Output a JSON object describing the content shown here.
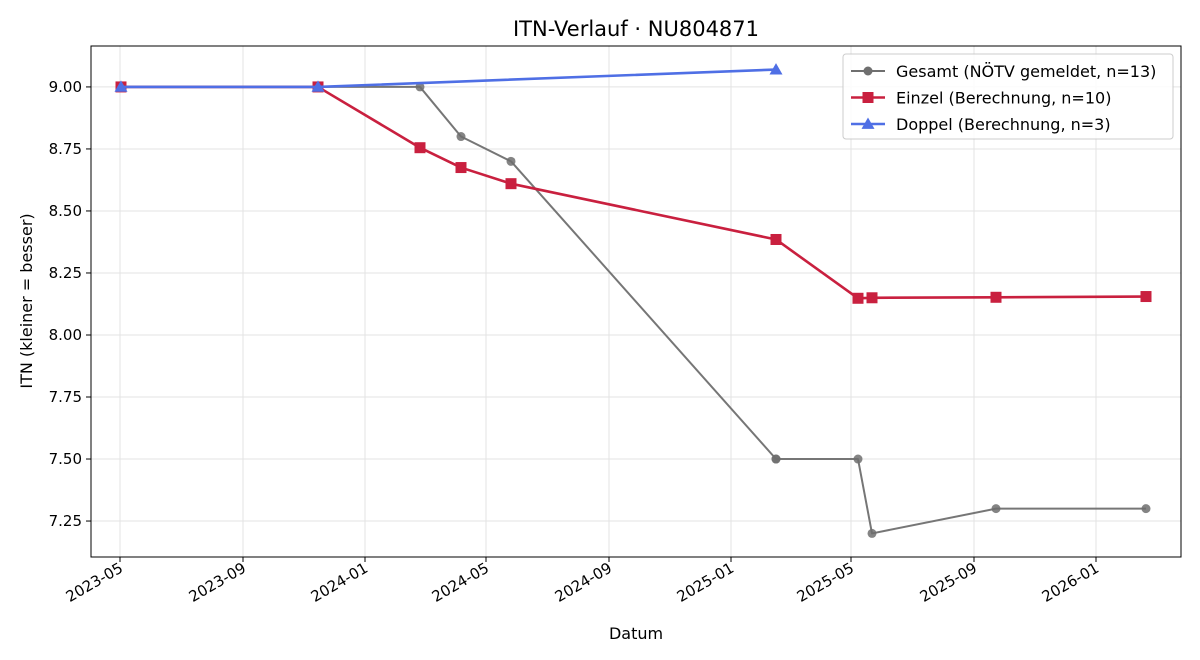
{
  "chart_data": {
    "type": "line",
    "title": "ITN-Verlauf · NU804871",
    "xlabel": "Datum",
    "ylabel": "ITN  (kleiner = besser)",
    "x_type": "date",
    "xlim": [
      "2023-04-02",
      "2026-03-27"
    ],
    "ylim": [
      7.105,
      9.165
    ],
    "grid": true,
    "legend_position": "top-right",
    "xticks": [
      {
        "value": "2023-05-01",
        "label": "2023-05"
      },
      {
        "value": "2023-09-01",
        "label": "2023-09"
      },
      {
        "value": "2024-01-01",
        "label": "2024-01"
      },
      {
        "value": "2024-05-01",
        "label": "2024-05"
      },
      {
        "value": "2024-09-01",
        "label": "2024-09"
      },
      {
        "value": "2025-01-01",
        "label": "2025-01"
      },
      {
        "value": "2025-05-01",
        "label": "2025-05"
      },
      {
        "value": "2025-09-01",
        "label": "2025-09"
      },
      {
        "value": "2026-01-01",
        "label": "2026-01"
      }
    ],
    "yticks": [
      {
        "value": 7.25,
        "label": "7.25"
      },
      {
        "value": 7.5,
        "label": "7.50"
      },
      {
        "value": 7.75,
        "label": "7.75"
      },
      {
        "value": 8.0,
        "label": "8.00"
      },
      {
        "value": 8.25,
        "label": "8.25"
      },
      {
        "value": 8.5,
        "label": "8.50"
      },
      {
        "value": 8.75,
        "label": "8.75"
      },
      {
        "value": 9.0,
        "label": "9.00"
      }
    ],
    "series": [
      {
        "name": "Gesamt (NÖTV gemeldet, n=13)",
        "color": "#6f6f6f",
        "marker": "circle",
        "points": [
          {
            "x": "2023-05-02",
            "y": 9.0
          },
          {
            "x": "2023-11-15",
            "y": 9.0
          },
          {
            "x": "2024-02-25",
            "y": 9.0
          },
          {
            "x": "2024-04-06",
            "y": 8.8
          },
          {
            "x": "2024-05-26",
            "y": 8.7
          },
          {
            "x": "2025-02-15",
            "y": 7.5
          },
          {
            "x": "2025-02-15",
            "y": 7.5
          },
          {
            "x": "2025-05-08",
            "y": 7.5
          },
          {
            "x": "2025-05-22",
            "y": 7.2
          },
          {
            "x": "2025-09-23",
            "y": 7.3
          },
          {
            "x": "2026-02-20",
            "y": 7.3
          }
        ]
      },
      {
        "name": "Einzel (Berechnung, n=10)",
        "color": "#c9203f",
        "marker": "square",
        "points": [
          {
            "x": "2023-05-02",
            "y": 9.0
          },
          {
            "x": "2023-11-15",
            "y": 9.0
          },
          {
            "x": "2024-02-25",
            "y": 8.755
          },
          {
            "x": "2024-04-06",
            "y": 8.675
          },
          {
            "x": "2024-05-26",
            "y": 8.61
          },
          {
            "x": "2025-02-15",
            "y": 8.385
          },
          {
            "x": "2025-05-08",
            "y": 8.148
          },
          {
            "x": "2025-05-22",
            "y": 8.15
          },
          {
            "x": "2025-09-23",
            "y": 8.152
          },
          {
            "x": "2026-02-20",
            "y": 8.155
          }
        ]
      },
      {
        "name": "Doppel (Berechnung, n=3)",
        "color": "#4f6fe5",
        "marker": "triangle",
        "points": [
          {
            "x": "2023-05-02",
            "y": 9.0
          },
          {
            "x": "2023-11-15",
            "y": 9.0
          },
          {
            "x": "2025-02-15",
            "y": 9.07
          }
        ]
      }
    ]
  }
}
